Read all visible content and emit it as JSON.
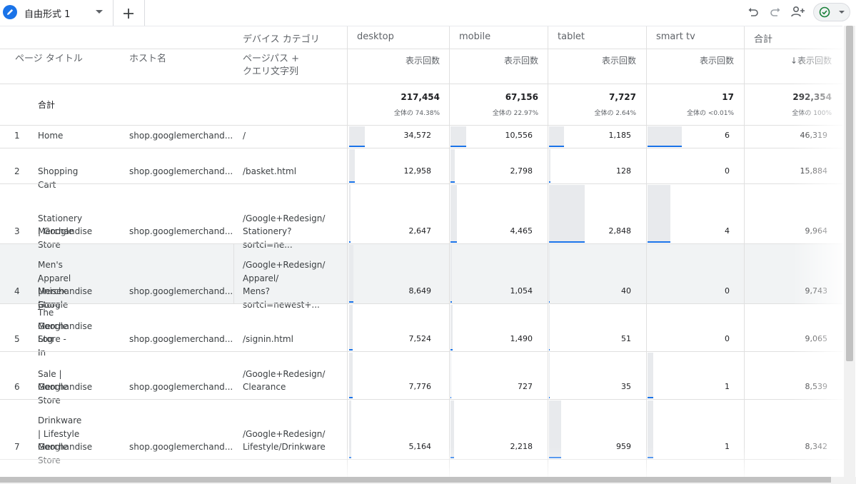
{
  "tab": {
    "label": "自由形式 1",
    "icon": "pencil-icon"
  },
  "toolbar": {
    "undo": "undo-icon",
    "redo": "redo-icon",
    "share": "share-user-icon",
    "status": "check-circle-icon"
  },
  "table": {
    "dimension_header": "デバイス カテゴリ",
    "devices": [
      "desktop",
      "mobile",
      "tablet",
      "smart tv",
      "合計"
    ],
    "col_page_title": "ページ タイトル",
    "col_host": "ホスト名",
    "col_path_line1": "ページパス +",
    "col_path_line2": "クエリ文字列",
    "metric": "表示回数",
    "metric_sorted": "↓表示回数",
    "totals": {
      "label": "合計",
      "values": [
        "217,454",
        "67,156",
        "7,727",
        "17",
        "292,354"
      ],
      "pcts": [
        "全体の 74.38%",
        "全体の 22.97%",
        "全体の 2.64%",
        "全体の <0.01%",
        "全体の 100%"
      ]
    },
    "rows": [
      {
        "num": "1",
        "title": [
          "Home"
        ],
        "host": "shop.googlemerchand...",
        "path": [
          "/"
        ],
        "values": [
          "34,572",
          "10,556",
          "1,185",
          "6",
          "46,319"
        ]
      },
      {
        "num": "2",
        "title": [
          "Shopping Cart"
        ],
        "host": "shop.googlemerchand...",
        "path": [
          "/basket.html"
        ],
        "values": [
          "12,958",
          "2,798",
          "128",
          "0",
          "15,884"
        ]
      },
      {
        "num": "3",
        "title": [
          "Stationery | Google",
          "Merchandise Store"
        ],
        "host": "shop.googlemerchand...",
        "path": [
          "/Google+Redesign/",
          "Stationery?sortci=ne..."
        ],
        "values": [
          "2,647",
          "4,465",
          "2,848",
          "4",
          "9,964"
        ]
      },
      {
        "num": "4",
        "title": [
          "Men's / Unisex |",
          "Apparel | Google",
          "Merchandise Store"
        ],
        "host": "shop.googlemerchand...",
        "path": [
          "/Google+Redesign/",
          "Apparel/",
          "Mens?sortci=newest+..."
        ],
        "values": [
          "8,649",
          "1,054",
          "40",
          "0",
          "9,743"
        ]
      },
      {
        "num": "5",
        "title": [
          "The Google",
          "Merchandise Store -",
          "Log In"
        ],
        "host": "shop.googlemerchand...",
        "path": [
          "/signin.html"
        ],
        "values": [
          "7,524",
          "1,490",
          "51",
          "0",
          "9,065"
        ]
      },
      {
        "num": "6",
        "title": [
          "Sale | Google",
          "Merchandise Store"
        ],
        "host": "shop.googlemerchand...",
        "path": [
          "/Google+Redesign/",
          "Clearance"
        ],
        "values": [
          "7,776",
          "727",
          "35",
          "1",
          "8,539"
        ]
      },
      {
        "num": "7",
        "title": [
          "Drinkware | Lifestyle",
          "| Google",
          "Merchandise Store"
        ],
        "host": "shop.googlemerchand...",
        "path": [
          "/Google+Redesign/",
          "Lifestyle/Drinkware"
        ],
        "values": [
          "5,164",
          "2,218",
          "959",
          "1",
          "8,342"
        ]
      }
    ]
  },
  "colors": {
    "accent": "#1a73e8",
    "bar": "#e8eaed",
    "hover_row": "#f1f3f4",
    "status_green": "#188038"
  }
}
